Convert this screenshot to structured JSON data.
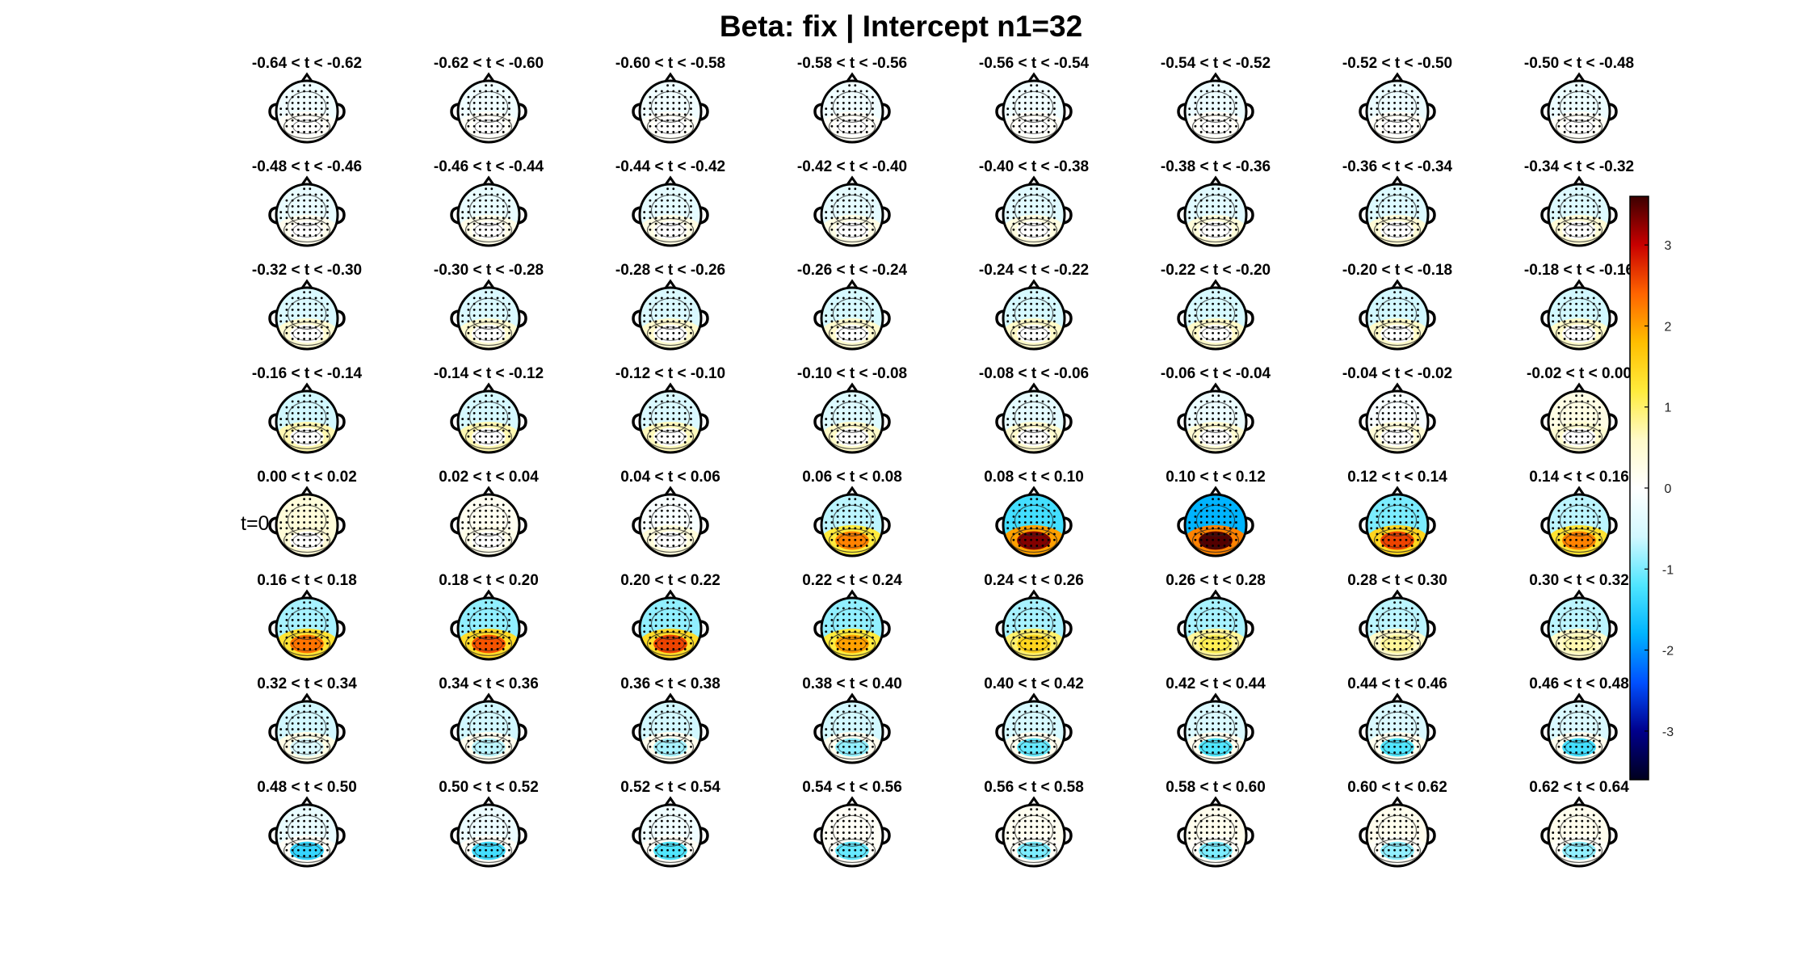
{
  "title": "Beta: fix | Intercept  n1=32",
  "t0_marker": "t=0",
  "chart_data": {
    "type": "heatmap",
    "description_kind": "topographic scalp maps",
    "rows": 8,
    "cols": 8,
    "panels": [
      {
        "label": "-0.64 < t < -0.62",
        "front": -0.2,
        "back": 0.1,
        "occ": 0.0
      },
      {
        "label": "-0.62 < t < -0.60",
        "front": -0.2,
        "back": 0.1,
        "occ": 0.0
      },
      {
        "label": "-0.60 < t < -0.58",
        "front": -0.2,
        "back": 0.1,
        "occ": 0.0
      },
      {
        "label": "-0.58 < t < -0.56",
        "front": -0.2,
        "back": 0.1,
        "occ": 0.0
      },
      {
        "label": "-0.56 < t < -0.54",
        "front": -0.2,
        "back": 0.1,
        "occ": 0.0
      },
      {
        "label": "-0.54 < t < -0.52",
        "front": -0.25,
        "back": 0.1,
        "occ": 0.0
      },
      {
        "label": "-0.52 < t < -0.50",
        "front": -0.25,
        "back": 0.1,
        "occ": 0.0
      },
      {
        "label": "-0.50 < t < -0.48",
        "front": -0.25,
        "back": 0.1,
        "occ": 0.0
      },
      {
        "label": "-0.48 < t < -0.46",
        "front": -0.3,
        "back": 0.2,
        "occ": 0.0
      },
      {
        "label": "-0.46 < t < -0.44",
        "front": -0.3,
        "back": 0.25,
        "occ": 0.0
      },
      {
        "label": "-0.44 < t < -0.42",
        "front": -0.35,
        "back": 0.3,
        "occ": 0.0
      },
      {
        "label": "-0.42 < t < -0.40",
        "front": -0.35,
        "back": 0.3,
        "occ": 0.0
      },
      {
        "label": "-0.40 < t < -0.38",
        "front": -0.4,
        "back": 0.35,
        "occ": 0.0
      },
      {
        "label": "-0.38 < t < -0.36",
        "front": -0.4,
        "back": 0.4,
        "occ": 0.0
      },
      {
        "label": "-0.36 < t < -0.34",
        "front": -0.45,
        "back": 0.45,
        "occ": 0.0
      },
      {
        "label": "-0.34 < t < -0.32",
        "front": -0.45,
        "back": 0.45,
        "occ": 0.0
      },
      {
        "label": "-0.32 < t < -0.30",
        "front": -0.5,
        "back": 0.5,
        "occ": 0.0
      },
      {
        "label": "-0.30 < t < -0.28",
        "front": -0.5,
        "back": 0.5,
        "occ": 0.0
      },
      {
        "label": "-0.28 < t < -0.26",
        "front": -0.5,
        "back": 0.55,
        "occ": 0.0
      },
      {
        "label": "-0.26 < t < -0.24",
        "front": -0.55,
        "back": 0.55,
        "occ": 0.0
      },
      {
        "label": "-0.24 < t < -0.22",
        "front": -0.55,
        "back": 0.6,
        "occ": 0.0
      },
      {
        "label": "-0.22 < t < -0.20",
        "front": -0.55,
        "back": 0.6,
        "occ": 0.0
      },
      {
        "label": "-0.20 < t < -0.18",
        "front": -0.6,
        "back": 0.6,
        "occ": 0.0
      },
      {
        "label": "-0.18 < t < -0.16",
        "front": -0.6,
        "back": 0.6,
        "occ": 0.0
      },
      {
        "label": "-0.16 < t < -0.14",
        "front": -0.6,
        "back": 0.7,
        "occ": 0.0
      },
      {
        "label": "-0.14 < t < -0.12",
        "front": -0.55,
        "back": 0.7,
        "occ": 0.0
      },
      {
        "label": "-0.12 < t < -0.10",
        "front": -0.5,
        "back": 0.65,
        "occ": 0.0
      },
      {
        "label": "-0.10 < t < -0.08",
        "front": -0.45,
        "back": 0.6,
        "occ": 0.0
      },
      {
        "label": "-0.08 < t < -0.06",
        "front": -0.35,
        "back": 0.55,
        "occ": 0.0
      },
      {
        "label": "-0.06 < t < -0.04",
        "front": -0.25,
        "back": 0.5,
        "occ": 0.0
      },
      {
        "label": "-0.04 < t < -0.02",
        "front": -0.1,
        "back": 0.45,
        "occ": 0.0
      },
      {
        "label": "-0.02 < t < 0.00",
        "front": 0.3,
        "back": 0.5,
        "occ": 0.0
      },
      {
        "label": "0.00 < t < 0.02",
        "front": 0.4,
        "back": 0.45,
        "occ": 0.0
      },
      {
        "label": "0.02 < t < 0.04",
        "front": 0.15,
        "back": 0.25,
        "occ": 0.0
      },
      {
        "label": "0.04 < t < 0.06",
        "front": -0.1,
        "back": 0.4,
        "occ": 0.0
      },
      {
        "label": "0.06 < t < 0.08",
        "front": -0.7,
        "back": 1.2,
        "occ": 2.2
      },
      {
        "label": "0.08 < t < 0.10",
        "front": -1.3,
        "back": 2.0,
        "occ": 3.3
      },
      {
        "label": "0.10 < t < 0.12",
        "front": -1.8,
        "back": 2.2,
        "occ": 3.5
      },
      {
        "label": "0.12 < t < 0.14",
        "front": -1.0,
        "back": 1.5,
        "occ": 2.6
      },
      {
        "label": "0.14 < t < 0.16",
        "front": -0.7,
        "back": 1.3,
        "occ": 2.2
      },
      {
        "label": "0.16 < t < 0.18",
        "front": -0.8,
        "back": 1.3,
        "occ": 2.3
      },
      {
        "label": "0.18 < t < 0.20",
        "front": -0.9,
        "back": 1.4,
        "occ": 2.5
      },
      {
        "label": "0.20 < t < 0.22",
        "front": -0.9,
        "back": 1.4,
        "occ": 2.6
      },
      {
        "label": "0.22 < t < 0.24",
        "front": -0.9,
        "back": 1.2,
        "occ": 2.0
      },
      {
        "label": "0.24 < t < 0.26",
        "front": -0.8,
        "back": 1.0,
        "occ": 1.5
      },
      {
        "label": "0.26 < t < 0.28",
        "front": -0.8,
        "back": 0.8,
        "occ": 1.1
      },
      {
        "label": "0.28 < t < 0.30",
        "front": -0.7,
        "back": 0.6,
        "occ": 0.8
      },
      {
        "label": "0.30 < t < 0.32",
        "front": -0.7,
        "back": 0.6,
        "occ": 0.7
      },
      {
        "label": "0.32 < t < 0.34",
        "front": -0.6,
        "back": 0.3,
        "occ": -0.5
      },
      {
        "label": "0.34 < t < 0.36",
        "front": -0.6,
        "back": 0.2,
        "occ": -0.7
      },
      {
        "label": "0.36 < t < 0.38",
        "front": -0.6,
        "back": 0.2,
        "occ": -0.8
      },
      {
        "label": "0.38 < t < 0.40",
        "front": -0.6,
        "back": 0.2,
        "occ": -0.9
      },
      {
        "label": "0.40 < t < 0.42",
        "front": -0.55,
        "back": 0.2,
        "occ": -1.1
      },
      {
        "label": "0.42 < t < 0.44",
        "front": -0.5,
        "back": 0.2,
        "occ": -1.2
      },
      {
        "label": "0.44 < t < 0.46",
        "front": -0.5,
        "back": 0.2,
        "occ": -1.2
      },
      {
        "label": "0.46 < t < 0.48",
        "front": -0.5,
        "back": 0.2,
        "occ": -1.3
      },
      {
        "label": "0.48 < t < 0.50",
        "front": -0.3,
        "back": 0.1,
        "occ": -1.4
      },
      {
        "label": "0.50 < t < 0.52",
        "front": -0.25,
        "back": 0.1,
        "occ": -1.3
      },
      {
        "label": "0.52 < t < 0.54",
        "front": -0.2,
        "back": 0.1,
        "occ": -1.2
      },
      {
        "label": "0.54 < t < 0.56",
        "front": 0.1,
        "back": 0.1,
        "occ": -1.1
      },
      {
        "label": "0.56 < t < 0.58",
        "front": 0.15,
        "back": 0.1,
        "occ": -1.0
      },
      {
        "label": "0.58 < t < 0.60",
        "front": 0.2,
        "back": 0.1,
        "occ": -1.0
      },
      {
        "label": "0.60 < t < 0.62",
        "front": 0.2,
        "back": 0.1,
        "occ": -0.9
      },
      {
        "label": "0.62 < t < 0.64",
        "front": 0.2,
        "back": 0.1,
        "occ": -0.9
      }
    ],
    "colorbar": {
      "range": [
        -3.6,
        3.6
      ],
      "ticks": [
        "-3",
        "-2",
        "-1",
        "0",
        "1",
        "2",
        "3"
      ],
      "tick_values": [
        -3,
        -2,
        -1,
        0,
        1,
        2,
        3
      ],
      "colormap": [
        "#00001e",
        "#00008c",
        "#0050ff",
        "#00b4ff",
        "#50e6ff",
        "#d2f8ff",
        "#ffffff",
        "#fffac8",
        "#ffeb3c",
        "#ffbe00",
        "#ff6400",
        "#c80000",
        "#3c0000"
      ]
    }
  }
}
